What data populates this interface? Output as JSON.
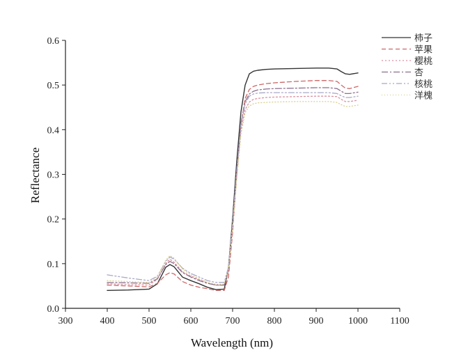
{
  "chart_data": {
    "type": "line",
    "xlabel": "Wavelength (nm)",
    "ylabel": "Reflectance",
    "xlim": [
      300,
      1100
    ],
    "ylim": [
      0.0,
      0.6
    ],
    "xticks": [
      300,
      400,
      500,
      600,
      700,
      800,
      900,
      1000,
      1100
    ],
    "yticks": [
      0.0,
      0.1,
      0.2,
      0.3,
      0.4,
      0.5,
      0.6
    ],
    "xtick_labels": [
      "300",
      "400",
      "500",
      "600",
      "700",
      "800",
      "900",
      "1000",
      "1100"
    ],
    "ytick_labels": [
      "0.0",
      "0.1",
      "0.2",
      "0.3",
      "0.4",
      "0.5",
      "0.6"
    ],
    "grid": false,
    "legend_position": "top-right",
    "x": [
      400,
      450,
      500,
      520,
      540,
      550,
      560,
      580,
      600,
      620,
      640,
      660,
      680,
      690,
      700,
      710,
      720,
      730,
      740,
      750,
      760,
      780,
      800,
      850,
      900,
      930,
      950,
      960,
      970,
      980,
      1000
    ],
    "series": [
      {
        "name": "柿子",
        "color": "#333333",
        "dash": "solid",
        "values": [
          0.04,
          0.041,
          0.043,
          0.055,
          0.092,
          0.098,
          0.093,
          0.07,
          0.062,
          0.055,
          0.047,
          0.042,
          0.043,
          0.09,
          0.2,
          0.33,
          0.44,
          0.5,
          0.525,
          0.531,
          0.533,
          0.535,
          0.536,
          0.537,
          0.538,
          0.538,
          0.536,
          0.53,
          0.525,
          0.524,
          0.527
        ]
      },
      {
        "name": "苹果",
        "color": "#cc6666",
        "dash": "6,4",
        "values": [
          0.052,
          0.05,
          0.048,
          0.056,
          0.075,
          0.08,
          0.077,
          0.06,
          0.052,
          0.047,
          0.044,
          0.04,
          0.04,
          0.07,
          0.17,
          0.3,
          0.41,
          0.47,
          0.49,
          0.497,
          0.5,
          0.503,
          0.505,
          0.508,
          0.51,
          0.51,
          0.508,
          0.5,
          0.493,
          0.492,
          0.497
        ]
      },
      {
        "name": "樱桃",
        "color": "#d98fa0",
        "dash": "2,3",
        "values": [
          0.055,
          0.053,
          0.052,
          0.065,
          0.1,
          0.11,
          0.103,
          0.082,
          0.072,
          0.064,
          0.057,
          0.052,
          0.052,
          0.085,
          0.18,
          0.3,
          0.4,
          0.445,
          0.462,
          0.468,
          0.47,
          0.472,
          0.473,
          0.474,
          0.475,
          0.475,
          0.474,
          0.468,
          0.463,
          0.463,
          0.466
        ]
      },
      {
        "name": "杏",
        "color": "#8c6f8c",
        "dash": "9,3,2,3",
        "values": [
          0.058,
          0.057,
          0.056,
          0.066,
          0.098,
          0.105,
          0.1,
          0.08,
          0.07,
          0.062,
          0.056,
          0.052,
          0.052,
          0.085,
          0.185,
          0.31,
          0.415,
          0.463,
          0.48,
          0.486,
          0.489,
          0.491,
          0.492,
          0.493,
          0.494,
          0.494,
          0.492,
          0.486,
          0.481,
          0.481,
          0.484
        ]
      },
      {
        "name": "核桃",
        "color": "#a8a8c8",
        "dash": "8,3,2,3,2,3",
        "values": [
          0.075,
          0.068,
          0.062,
          0.072,
          0.105,
          0.115,
          0.11,
          0.09,
          0.078,
          0.07,
          0.062,
          0.058,
          0.058,
          0.092,
          0.19,
          0.31,
          0.41,
          0.458,
          0.475,
          0.48,
          0.482,
          0.483,
          0.483,
          0.483,
          0.483,
          0.483,
          0.481,
          0.476,
          0.472,
          0.472,
          0.475
        ]
      },
      {
        "name": "洋槐",
        "color": "#d8d090",
        "dash": "1,3",
        "values": [
          0.062,
          0.06,
          0.058,
          0.07,
          0.108,
          0.118,
          0.112,
          0.088,
          0.075,
          0.066,
          0.058,
          0.054,
          0.054,
          0.088,
          0.18,
          0.29,
          0.39,
          0.438,
          0.453,
          0.458,
          0.46,
          0.461,
          0.462,
          0.463,
          0.463,
          0.463,
          0.461,
          0.456,
          0.452,
          0.452,
          0.455
        ]
      }
    ]
  }
}
